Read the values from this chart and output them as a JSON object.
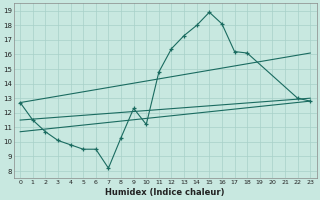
{
  "xlabel": "Humidex (Indice chaleur)",
  "bg_color": "#c8e8e0",
  "grid_color": "#a8d0c8",
  "line_color": "#1a6b60",
  "xlim": [
    -0.5,
    23.5
  ],
  "ylim": [
    7.5,
    19.5
  ],
  "xticks": [
    0,
    1,
    2,
    3,
    4,
    5,
    6,
    7,
    8,
    9,
    10,
    11,
    12,
    13,
    14,
    15,
    16,
    17,
    18,
    19,
    20,
    21,
    22,
    23
  ],
  "yticks": [
    8,
    9,
    10,
    11,
    12,
    13,
    14,
    15,
    16,
    17,
    18,
    19
  ],
  "zigzag": {
    "x": [
      0,
      1,
      2,
      3,
      4,
      5,
      6,
      7,
      8,
      9,
      10,
      11,
      12,
      13,
      14,
      15,
      16,
      17,
      18,
      22,
      23
    ],
    "y": [
      12.7,
      11.5,
      10.7,
      10.1,
      9.8,
      9.5,
      9.5,
      8.2,
      10.3,
      12.3,
      11.2,
      14.8,
      16.4,
      17.3,
      18.0,
      18.9,
      18.1,
      16.2,
      16.1,
      13.0,
      12.8
    ]
  },
  "line_top": {
    "x": [
      0,
      23
    ],
    "y": [
      12.7,
      16.1
    ]
  },
  "line_mid": {
    "x": [
      0,
      23
    ],
    "y": [
      11.5,
      13.0
    ]
  },
  "line_bot": {
    "x": [
      0,
      23
    ],
    "y": [
      10.7,
      12.8
    ]
  }
}
